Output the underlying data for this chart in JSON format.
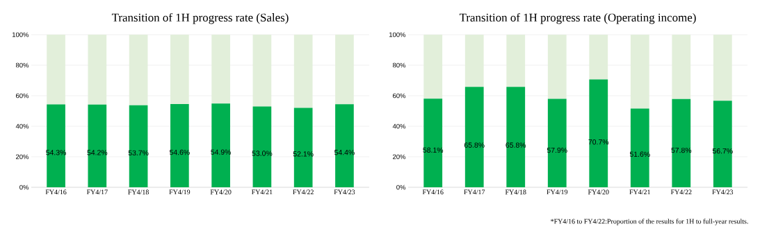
{
  "chart_data": [
    {
      "type": "bar",
      "title": "Transition of 1H progress rate (Sales)",
      "stacked": true,
      "grid": "y",
      "categories": [
        "FY4/16",
        "FY4/17",
        "FY4/18",
        "FY4/19",
        "FY4/20",
        "FY4/21",
        "FY4/22",
        "FY4/23"
      ],
      "series": [
        {
          "color": "#00b050",
          "values": [
            54.3,
            54.2,
            53.7,
            54.6,
            54.9,
            53.0,
            52.1,
            54.4
          ],
          "value_labels": [
            "54.3%",
            "54.2%",
            "53.7%",
            "54.6%",
            "54.9%",
            "53.0%",
            "52.1%",
            "54.4%"
          ]
        },
        {
          "color": "#e2efda",
          "values": [
            45.7,
            45.8,
            46.3,
            45.4,
            45.1,
            47.0,
            47.9,
            45.6
          ]
        }
      ],
      "ylim": [
        0,
        100
      ],
      "yticks": [
        {
          "value": 0,
          "label": "0%"
        },
        {
          "value": 20,
          "label": "20%"
        },
        {
          "value": 40,
          "label": "40%"
        },
        {
          "value": 60,
          "label": "60%"
        },
        {
          "value": 80,
          "label": "80%"
        },
        {
          "value": 100,
          "label": "100%"
        }
      ]
    },
    {
      "type": "bar",
      "title": "Transition of 1H progress rate (Operating income)",
      "stacked": true,
      "grid": "y",
      "categories": [
        "FY4/16",
        "FY4/17",
        "FY4/18",
        "FY4/19",
        "FY4/20",
        "FY4/21",
        "FY4/22",
        "FY4/23"
      ],
      "series": [
        {
          "color": "#00b050",
          "values": [
            58.1,
            65.8,
            65.8,
            57.9,
            70.7,
            51.6,
            57.8,
            56.7
          ],
          "value_labels": [
            "58.1%",
            "65.8%",
            "65.8%",
            "57.9%",
            "70.7%",
            "51.6%",
            "57.8%",
            "56.7%"
          ]
        },
        {
          "color": "#e2efda",
          "values": [
            41.9,
            34.2,
            34.2,
            42.1,
            29.3,
            48.4,
            42.2,
            43.3
          ]
        }
      ],
      "ylim": [
        0,
        100
      ],
      "yticks": [
        {
          "value": 0,
          "label": "0%"
        },
        {
          "value": 20,
          "label": "20%"
        },
        {
          "value": 40,
          "label": "40%"
        },
        {
          "value": 60,
          "label": "60%"
        },
        {
          "value": 80,
          "label": "80%"
        },
        {
          "value": 100,
          "label": "100%"
        }
      ],
      "annotations": [
        "*FY4/16 to FY4/22:Proportion of the results for 1H to full-year results."
      ]
    }
  ]
}
